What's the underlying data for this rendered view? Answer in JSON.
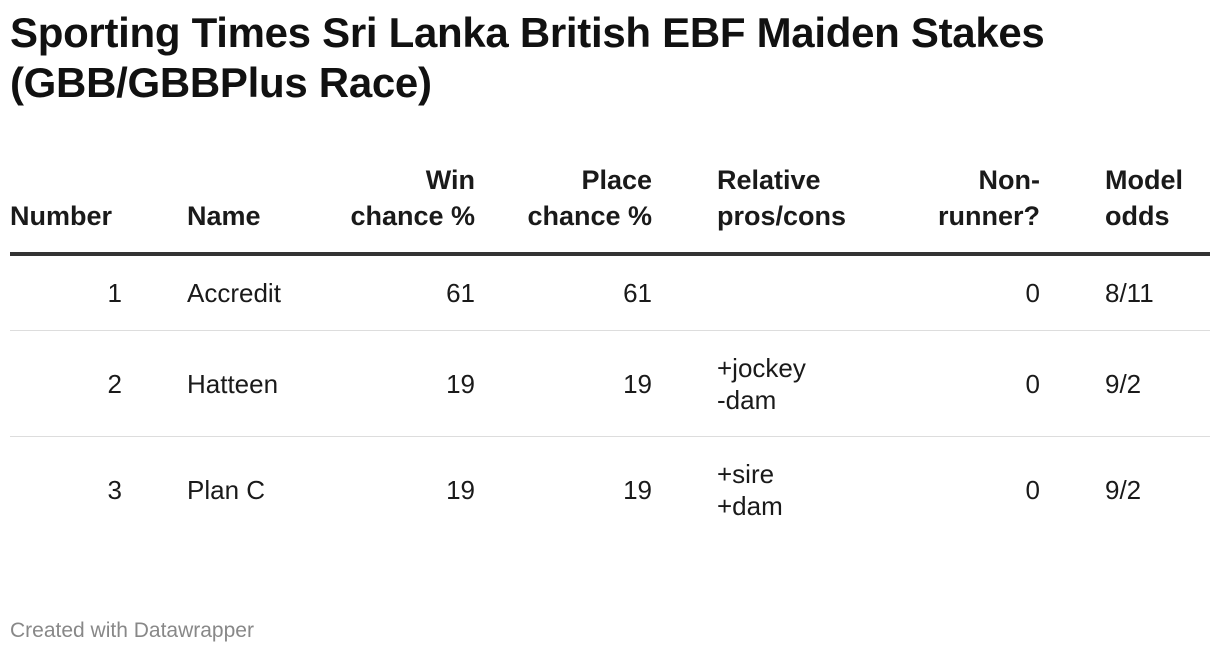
{
  "title": "Sporting Times Sri Lanka British EBF Maiden Stakes (GBB/GBBPlus Race)",
  "table": {
    "headers": {
      "number": "Number",
      "name": "Name",
      "win_chance": "Win chance %",
      "place_chance": "Place chance %",
      "pros_cons": "Relative pros/cons",
      "non_runner": "Non-runner?",
      "model_odds": "Model odds"
    },
    "rows": [
      {
        "number": "1",
        "name": "Accredit",
        "win": "61",
        "place": "61",
        "pros_cons": [
          "",
          ""
        ],
        "non_runner": "0",
        "odds": "8/11"
      },
      {
        "number": "2",
        "name": "Hatteen",
        "win": "19",
        "place": "19",
        "pros_cons": [
          "+jockey",
          "-dam"
        ],
        "non_runner": "0",
        "odds": "9/2"
      },
      {
        "number": "3",
        "name": "Plan C",
        "win": "19",
        "place": "19",
        "pros_cons": [
          "+sire",
          "+dam"
        ],
        "non_runner": "0",
        "odds": "9/2"
      }
    ]
  },
  "chart_data": {
    "type": "table",
    "title": "Sporting Times Sri Lanka British EBF Maiden Stakes (GBB/GBBPlus Race)",
    "columns": [
      "Number",
      "Name",
      "Win chance %",
      "Place chance %",
      "Relative pros/cons",
      "Non-runner?",
      "Model odds"
    ],
    "rows": [
      [
        1,
        "Accredit",
        61,
        61,
        "",
        0,
        "8/11"
      ],
      [
        2,
        "Hatteen",
        19,
        19,
        "+jockey -dam",
        0,
        "9/2"
      ],
      [
        3,
        "Plan C",
        19,
        19,
        "+sire +dam",
        0,
        "9/2"
      ]
    ]
  },
  "footer": "Created with Datawrapper"
}
